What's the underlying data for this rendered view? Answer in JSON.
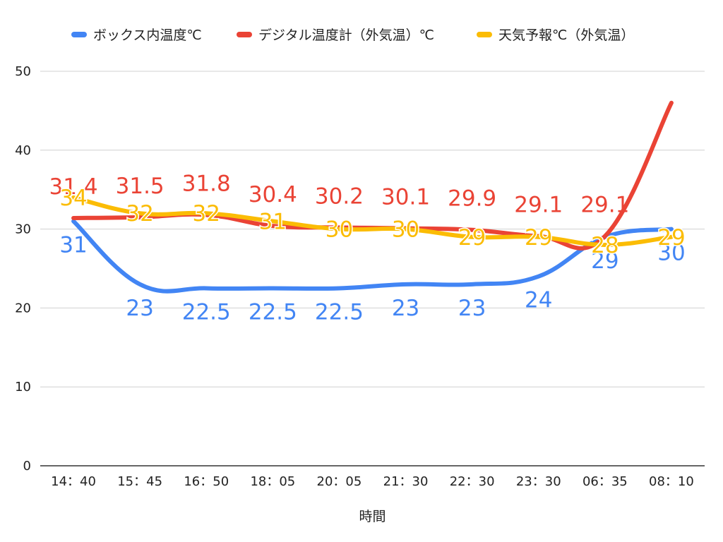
{
  "chart_data": {
    "type": "line",
    "title": "",
    "xlabel": "時間",
    "ylabel": "",
    "ylim": [
      0,
      50
    ],
    "yticks": [
      0,
      10,
      20,
      30,
      40,
      50
    ],
    "grid": true,
    "legend_position": "top",
    "categories": [
      "14：40",
      "15：45",
      "16：50",
      "18：05",
      "20：05",
      "21：30",
      "22：30",
      "23：30",
      "06：35",
      "08：10"
    ],
    "series": [
      {
        "name": "ボックス内温度℃",
        "color": "#4285F4",
        "values": [
          31,
          23,
          22.5,
          22.5,
          22.5,
          23,
          23,
          24,
          29,
          30
        ],
        "labels": [
          "31",
          "23",
          "22.5",
          "22.5",
          "22.5",
          "23",
          "23",
          "24",
          "29",
          "30"
        ]
      },
      {
        "name": "デジタル温度計（外気温）℃",
        "color": "#EA4335",
        "values": [
          31.4,
          31.5,
          31.8,
          30.4,
          30.2,
          30.1,
          29.9,
          29.1,
          29.1,
          46
        ],
        "labels": [
          "31.4",
          "31.5",
          "31.8",
          "30.4",
          "30.2",
          "30.1",
          "29.9",
          "29.1",
          "29.1",
          ""
        ]
      },
      {
        "name": "天気予報℃（外気温）",
        "color": "#FBBC04",
        "values": [
          34,
          32,
          32,
          31,
          30,
          30,
          29,
          29,
          28,
          29
        ],
        "labels": [
          "34",
          "32",
          "32",
          "31",
          "30",
          "30",
          "29",
          "29",
          "28",
          "29"
        ]
      }
    ]
  }
}
